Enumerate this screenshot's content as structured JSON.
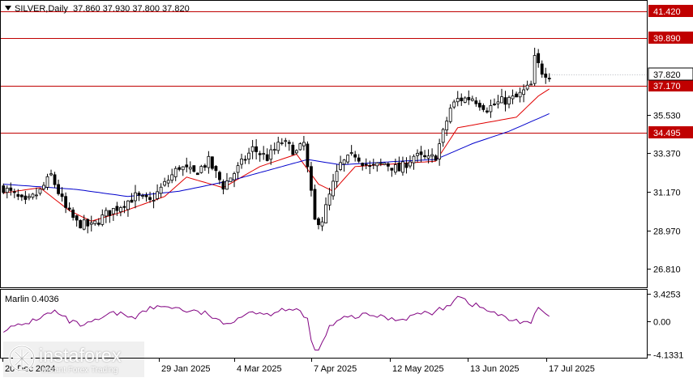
{
  "header": {
    "symbol": "SILVER,Daily",
    "ohlc": "37.860 37.930 37.800 37.820"
  },
  "indicator": {
    "label": "Marlin 0.4036",
    "axis_labels": [
      "3.4253",
      "0.00",
      "-4.1331"
    ]
  },
  "logo": {
    "name": "instaforex",
    "tagline": "Instant Forex Trading"
  },
  "colors": {
    "background": "#ffffff",
    "candle": "#000000",
    "level_line": "#c00000",
    "ma_fast": "#e00000",
    "ma_slow": "#0000cc",
    "oscillator": "#800080"
  },
  "chart_data": {
    "type": "candlestick",
    "ylim": [
      25.75,
      42.0
    ],
    "price_ticks": [
      26.81,
      28.97,
      31.17,
      33.37,
      35.53
    ],
    "price_tick_labels": [
      "26.810",
      "28.970",
      "31.170",
      "33.370",
      "35.530"
    ],
    "levels": [
      {
        "value": 41.42,
        "label": "41.420"
      },
      {
        "value": 39.89,
        "label": "39.890"
      },
      {
        "value": 37.17,
        "label": "37.170"
      },
      {
        "value": 34.495,
        "label": "34.495"
      }
    ],
    "current_price": {
      "value": 37.82,
      "label": "37.820"
    },
    "x_labels": [
      "20 Dec 2024",
      "29 Jan 2025",
      "4 Mar 2025",
      "7 Apr 2025",
      "12 May 2025",
      "13 Jun 2025",
      "17 Jul 2025"
    ],
    "close_key_points": [
      [
        0,
        31.4
      ],
      [
        6,
        30.5
      ],
      [
        10,
        31.2
      ],
      [
        13,
        32.1
      ],
      [
        17,
        30.2
      ],
      [
        20,
        29.4
      ],
      [
        24,
        29.2
      ],
      [
        28,
        29.9
      ],
      [
        32,
        30.4
      ],
      [
        36,
        30.9
      ],
      [
        40,
        30.6
      ],
      [
        44,
        31.6
      ],
      [
        48,
        32.6
      ],
      [
        52,
        32.2
      ],
      [
        56,
        32.9
      ],
      [
        60,
        31.5
      ],
      [
        64,
        32.5
      ],
      [
        68,
        33.6
      ],
      [
        72,
        33.1
      ],
      [
        76,
        34.0
      ],
      [
        80,
        33.4
      ],
      [
        82,
        33.9
      ],
      [
        84,
        31.0
      ],
      [
        85,
        29.5
      ],
      [
        87,
        29.6
      ],
      [
        90,
        31.6
      ],
      [
        92,
        32.7
      ],
      [
        96,
        33.3
      ],
      [
        100,
        32.5
      ],
      [
        104,
        32.8
      ],
      [
        108,
        32.4
      ],
      [
        112,
        33.2
      ],
      [
        116,
        33.0
      ],
      [
        118,
        33.2
      ],
      [
        120,
        34.5
      ],
      [
        122,
        35.9
      ],
      [
        124,
        36.4
      ],
      [
        128,
        36.5
      ],
      [
        132,
        35.9
      ],
      [
        136,
        36.3
      ],
      [
        140,
        36.5
      ],
      [
        144,
        37.2
      ],
      [
        145,
        38.7
      ],
      [
        147,
        38.0
      ],
      [
        149,
        37.82
      ]
    ],
    "ma_fast": [
      [
        0,
        31.1
      ],
      [
        10,
        31.4
      ],
      [
        18,
        30.1
      ],
      [
        24,
        29.5
      ],
      [
        32,
        30.0
      ],
      [
        44,
        30.9
      ],
      [
        50,
        32.0
      ],
      [
        60,
        31.4
      ],
      [
        70,
        32.6
      ],
      [
        80,
        33.3
      ],
      [
        86,
        31.6
      ],
      [
        90,
        31.2
      ],
      [
        96,
        32.6
      ],
      [
        110,
        32.8
      ],
      [
        118,
        32.9
      ],
      [
        124,
        34.8
      ],
      [
        132,
        35.1
      ],
      [
        140,
        35.4
      ],
      [
        146,
        36.6
      ],
      [
        149,
        37.0
      ]
    ],
    "ma_slow": [
      [
        0,
        31.6
      ],
      [
        20,
        31.3
      ],
      [
        34,
        30.9
      ],
      [
        48,
        31.2
      ],
      [
        62,
        31.8
      ],
      [
        76,
        32.6
      ],
      [
        83,
        33.0
      ],
      [
        92,
        32.7
      ],
      [
        108,
        32.9
      ],
      [
        118,
        33.0
      ],
      [
        128,
        33.9
      ],
      [
        138,
        34.6
      ],
      [
        149,
        35.6
      ]
    ],
    "oscillator": {
      "ylim": [
        -4.4,
        3.8
      ],
      "ticks": [
        3.4253,
        0.0,
        -4.1331
      ],
      "key_points": [
        [
          0,
          -1.0
        ],
        [
          5,
          -0.5
        ],
        [
          10,
          0.5
        ],
        [
          14,
          1.2
        ],
        [
          18,
          0.0
        ],
        [
          22,
          -0.6
        ],
        [
          26,
          0.2
        ],
        [
          30,
          1.0
        ],
        [
          36,
          0.6
        ],
        [
          40,
          1.6
        ],
        [
          45,
          1.9
        ],
        [
          50,
          1.3
        ],
        [
          56,
          0.9
        ],
        [
          60,
          -0.5
        ],
        [
          64,
          0.5
        ],
        [
          68,
          1.3
        ],
        [
          72,
          0.8
        ],
        [
          76,
          1.6
        ],
        [
          80,
          1.3
        ],
        [
          83,
          0.3
        ],
        [
          84,
          -2.6
        ],
        [
          86,
          -3.8
        ],
        [
          89,
          -0.7
        ],
        [
          93,
          0.4
        ],
        [
          100,
          0.8
        ],
        [
          108,
          0.2
        ],
        [
          114,
          1.0
        ],
        [
          118,
          1.1
        ],
        [
          122,
          2.2
        ],
        [
          124,
          3.3
        ],
        [
          127,
          2.3
        ],
        [
          132,
          1.4
        ],
        [
          138,
          0.2
        ],
        [
          144,
          -0.1
        ],
        [
          146,
          1.5
        ],
        [
          149,
          0.6
        ]
      ]
    }
  }
}
